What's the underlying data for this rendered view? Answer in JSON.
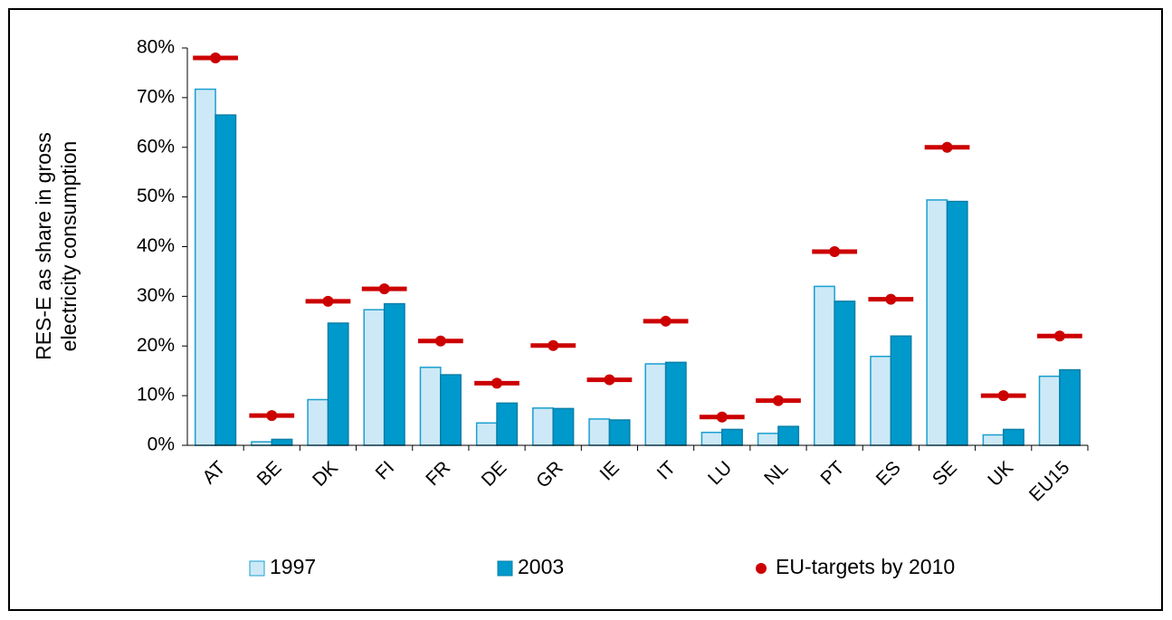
{
  "chart_data": {
    "type": "bar",
    "y_label": [
      "RES-E as share in gross",
      "electricity consumption"
    ],
    "categories": [
      "AT",
      "BE",
      "DK",
      "FI",
      "FR",
      "DE",
      "GR",
      "IE",
      "IT",
      "LU",
      "NL",
      "PT",
      "ES",
      "SE",
      "UK",
      "EU15"
    ],
    "series": [
      {
        "name": "1997",
        "color": "#cde9f7",
        "edge": "#1b9fd0",
        "values": [
          71.7,
          0.7,
          9.2,
          27.3,
          15.7,
          4.5,
          7.5,
          5.3,
          16.4,
          2.6,
          2.4,
          32,
          17.9,
          49.4,
          2.1,
          13.9
        ]
      },
      {
        "name": "2003",
        "color": "#0099cc",
        "edge": "#0a7fa8",
        "values": [
          66.5,
          1.2,
          24.6,
          28.5,
          14.2,
          8.5,
          7.4,
          5.1,
          16.7,
          3.2,
          3.8,
          29,
          22,
          49.1,
          3.2,
          15.2
        ]
      },
      {
        "name": "EU-targets by 2010",
        "color": "#cc0000",
        "marker": "dot-line",
        "values": [
          78,
          6,
          29,
          31.5,
          21,
          12.5,
          20.1,
          13.2,
          25,
          5.7,
          9,
          39,
          29.4,
          60,
          10,
          22
        ]
      }
    ],
    "ylim": [
      0,
      80
    ],
    "yticks": [
      {
        "value": 0,
        "label": "0%"
      },
      {
        "value": 10,
        "label": "10%"
      },
      {
        "value": 20,
        "label": "20%"
      },
      {
        "value": 30,
        "label": "30%"
      },
      {
        "value": 40,
        "label": "40%"
      },
      {
        "value": 50,
        "label": "50%"
      },
      {
        "value": 60,
        "label": "60%"
      },
      {
        "value": 70,
        "label": "70%"
      },
      {
        "value": 80,
        "label": "80%"
      }
    ],
    "grid": false
  }
}
